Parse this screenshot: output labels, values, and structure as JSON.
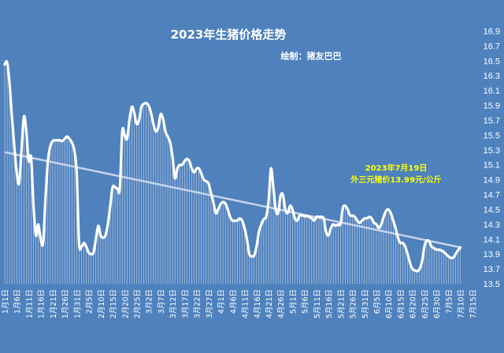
{
  "chart_data": {
    "type": "line",
    "title": "2023年生猪价格走势",
    "subtitle": "绘制：猪友巴巴",
    "annotation": [
      "2023年7月19日",
      "外三元猪价13.99元/公斤"
    ],
    "colors": {
      "background": "#4f81bd",
      "price_line": "#ffffff",
      "trend_line": "#c6d4ea",
      "drop_lines": "#ffffff",
      "annotation": "#ffff00"
    },
    "ylim": [
      13.5,
      17.0
    ],
    "y_ticks": [
      "13.5",
      "13.7",
      "13.9",
      "14.1",
      "14.3",
      "14.5",
      "14.7",
      "14.9",
      "15.1",
      "15.3",
      "15.5",
      "15.7",
      "15.9",
      "16.1",
      "16.3",
      "16.5",
      "16.7",
      "16.9"
    ],
    "x_ticks": [
      "1月1日",
      "1月6日",
      "1月11日",
      "1月16日",
      "1月21日",
      "1月26日",
      "1月31日",
      "2月5日",
      "2月10日",
      "2月15日",
      "2月20日",
      "2月25日",
      "3月2日",
      "3月7日",
      "3月12日",
      "3月17日",
      "3月22日",
      "3月27日",
      "4月1日",
      "4月6日",
      "4月11日",
      "4月16日",
      "4月21日",
      "4月26日",
      "5月1日",
      "5月6日",
      "5月11日",
      "5月16日",
      "5月21日",
      "5月26日",
      "5月31日",
      "6月5日",
      "6月10日",
      "6月15日",
      "6月20日",
      "6月25日",
      "6月30日",
      "7月5日",
      "7月10日",
      "7月15日"
    ],
    "series": [
      {
        "type": "line",
        "x_start_day": 1,
        "x_end_day": 200,
        "points": [
          [
            1,
            16.45
          ],
          [
            2,
            16.48
          ],
          [
            3,
            16.2
          ],
          [
            4,
            15.75
          ],
          [
            5,
            15.35
          ],
          [
            6,
            15.0
          ],
          [
            7,
            14.85
          ],
          [
            8,
            15.3
          ],
          [
            9,
            15.75
          ],
          [
            10,
            15.55
          ],
          [
            11,
            15.15
          ],
          [
            12,
            15.2
          ],
          [
            13,
            14.55
          ],
          [
            14,
            14.15
          ],
          [
            15,
            14.3
          ],
          [
            16,
            14.1
          ],
          [
            17,
            14.05
          ],
          [
            18,
            14.65
          ],
          [
            19,
            15.15
          ],
          [
            20,
            15.35
          ],
          [
            21,
            15.42
          ],
          [
            22,
            15.43
          ],
          [
            23,
            15.43
          ],
          [
            24,
            15.43
          ],
          [
            25,
            15.42
          ],
          [
            26,
            15.45
          ],
          [
            27,
            15.48
          ],
          [
            28,
            15.45
          ],
          [
            29,
            15.4
          ],
          [
            30,
            15.3
          ],
          [
            31,
            15.0
          ],
          [
            32,
            14.05
          ],
          [
            33,
            14.0
          ],
          [
            34,
            14.05
          ],
          [
            35,
            14.0
          ],
          [
            36,
            13.92
          ],
          [
            37,
            13.9
          ],
          [
            38,
            13.92
          ],
          [
            39,
            14.1
          ],
          [
            40,
            14.28
          ],
          [
            41,
            14.15
          ],
          [
            42,
            14.12
          ],
          [
            43,
            14.15
          ],
          [
            44,
            14.3
          ],
          [
            45,
            14.55
          ],
          [
            46,
            14.8
          ],
          [
            47,
            14.8
          ],
          [
            48,
            14.78
          ],
          [
            49,
            14.78
          ],
          [
            50,
            15.55
          ],
          [
            51,
            15.5
          ],
          [
            52,
            15.45
          ],
          [
            53,
            15.7
          ],
          [
            54,
            15.88
          ],
          [
            55,
            15.8
          ],
          [
            56,
            15.65
          ],
          [
            57,
            15.7
          ],
          [
            58,
            15.88
          ],
          [
            59,
            15.92
          ],
          [
            60,
            15.93
          ],
          [
            61,
            15.9
          ],
          [
            62,
            15.8
          ],
          [
            63,
            15.65
          ],
          [
            64,
            15.55
          ],
          [
            65,
            15.6
          ],
          [
            66,
            15.78
          ],
          [
            67,
            15.72
          ],
          [
            68,
            15.55
          ],
          [
            69,
            15.48
          ],
          [
            70,
            15.4
          ],
          [
            71,
            15.2
          ],
          [
            72,
            14.92
          ],
          [
            73,
            15.05
          ],
          [
            74,
            15.1
          ],
          [
            75,
            15.1
          ],
          [
            76,
            15.15
          ],
          [
            77,
            15.18
          ],
          [
            78,
            15.15
          ],
          [
            79,
            15.05
          ],
          [
            80,
            15.0
          ],
          [
            81,
            15.05
          ],
          [
            82,
            15.05
          ],
          [
            83,
            14.98
          ],
          [
            84,
            14.9
          ],
          [
            85,
            14.88
          ],
          [
            86,
            14.85
          ],
          [
            87,
            14.72
          ],
          [
            88,
            14.6
          ],
          [
            89,
            14.45
          ],
          [
            90,
            14.5
          ],
          [
            91,
            14.57
          ],
          [
            92,
            14.6
          ],
          [
            93,
            14.58
          ],
          [
            94,
            14.5
          ],
          [
            95,
            14.4
          ],
          [
            96,
            14.35
          ],
          [
            97,
            14.35
          ],
          [
            98,
            14.35
          ],
          [
            99,
            14.38
          ],
          [
            100,
            14.35
          ],
          [
            101,
            14.25
          ],
          [
            102,
            14.1
          ],
          [
            103,
            13.9
          ],
          [
            104,
            13.87
          ],
          [
            105,
            13.88
          ],
          [
            106,
            14.0
          ],
          [
            107,
            14.2
          ],
          [
            108,
            14.3
          ],
          [
            109,
            14.37
          ],
          [
            110,
            14.4
          ],
          [
            111,
            14.6
          ],
          [
            112,
            15.05
          ],
          [
            113,
            14.8
          ],
          [
            114,
            14.5
          ],
          [
            115,
            14.45
          ],
          [
            116,
            14.68
          ],
          [
            117,
            14.7
          ],
          [
            118,
            14.5
          ],
          [
            119,
            14.45
          ],
          [
            120,
            14.55
          ],
          [
            121,
            14.5
          ],
          [
            122,
            14.38
          ],
          [
            123,
            14.35
          ],
          [
            124,
            14.42
          ],
          [
            125,
            14.42
          ],
          [
            126,
            14.41
          ],
          [
            127,
            14.41
          ],
          [
            128,
            14.4
          ],
          [
            129,
            14.38
          ],
          [
            130,
            14.35
          ],
          [
            131,
            14.4
          ],
          [
            132,
            14.4
          ],
          [
            133,
            14.4
          ],
          [
            134,
            14.38
          ],
          [
            135,
            14.2
          ],
          [
            136,
            14.15
          ],
          [
            137,
            14.25
          ],
          [
            138,
            14.3
          ],
          [
            139,
            14.28
          ],
          [
            140,
            14.3
          ],
          [
            141,
            14.3
          ],
          [
            142,
            14.52
          ],
          [
            143,
            14.55
          ],
          [
            144,
            14.5
          ],
          [
            145,
            14.42
          ],
          [
            146,
            14.42
          ],
          [
            147,
            14.4
          ],
          [
            148,
            14.35
          ],
          [
            149,
            14.32
          ],
          [
            150,
            14.35
          ],
          [
            151,
            14.38
          ],
          [
            152,
            14.38
          ],
          [
            153,
            14.4
          ],
          [
            154,
            14.38
          ],
          [
            155,
            14.32
          ],
          [
            156,
            14.3
          ],
          [
            157,
            14.25
          ],
          [
            158,
            14.3
          ],
          [
            159,
            14.4
          ],
          [
            160,
            14.48
          ],
          [
            161,
            14.5
          ],
          [
            162,
            14.45
          ],
          [
            163,
            14.35
          ],
          [
            164,
            14.25
          ],
          [
            165,
            14.12
          ],
          [
            166,
            14.05
          ],
          [
            167,
            14.05
          ],
          [
            168,
            14.0
          ],
          [
            169,
            13.9
          ],
          [
            170,
            13.78
          ],
          [
            171,
            13.7
          ],
          [
            172,
            13.68
          ],
          [
            173,
            13.67
          ],
          [
            174,
            13.7
          ],
          [
            175,
            13.8
          ],
          [
            176,
            14.0
          ],
          [
            177,
            14.08
          ],
          [
            178,
            14.07
          ],
          [
            179,
            14.0
          ],
          [
            180,
            13.98
          ],
          [
            181,
            13.96
          ],
          [
            182,
            13.96
          ],
          [
            183,
            13.95
          ],
          [
            184,
            13.93
          ],
          [
            185,
            13.9
          ],
          [
            186,
            13.87
          ],
          [
            187,
            13.85
          ],
          [
            188,
            13.85
          ],
          [
            189,
            13.9
          ],
          [
            190,
            13.95
          ],
          [
            191,
            13.99
          ]
        ]
      },
      {
        "type": "trendline",
        "points": [
          [
            1,
            15.27
          ],
          [
            191,
            13.99
          ]
        ]
      }
    ],
    "grid": false,
    "legend": "none"
  }
}
